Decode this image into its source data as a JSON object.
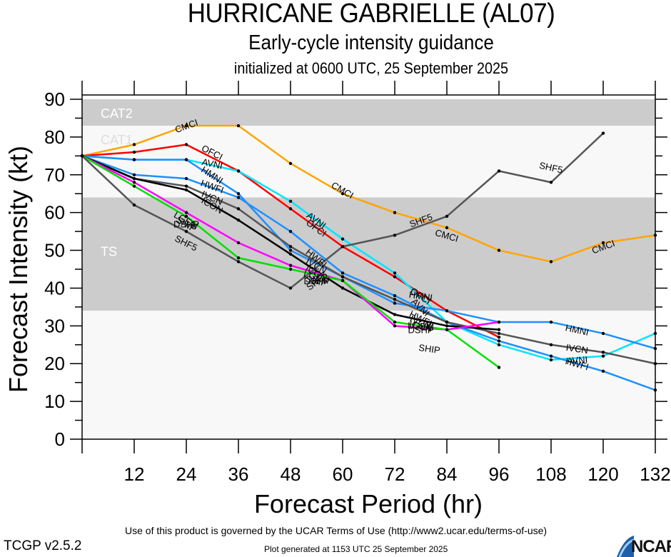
{
  "header": {
    "title": "HURRICANE GABRIELLE (AL07)",
    "subtitle": "Early-cycle intensity guidance",
    "init_line": "initialized at 0600 UTC, 25 September 2025"
  },
  "footer": {
    "terms": "Use of this product is governed by the UCAR Terms of Use (http://www2.ucar.edu/terms-of-use)",
    "version": "TCGP v2.5.2",
    "generated": "Plot generated at 1153 UTC   25 September 2025",
    "logo_text": "NCAR"
  },
  "chart_data": {
    "type": "line",
    "title": "HURRICANE GABRIELLE (AL07)",
    "xlabel": "Forecast Period (hr)",
    "ylabel": "Forecast Intensity (kt)",
    "xlim": [
      0,
      132
    ],
    "ylim": [
      0,
      90
    ],
    "x_ticks": [
      12,
      24,
      36,
      48,
      60,
      72,
      84,
      96,
      108,
      120,
      132
    ],
    "y_ticks": [
      0,
      10,
      20,
      30,
      40,
      50,
      60,
      70,
      80,
      90
    ],
    "bands": [
      {
        "label": "CAT2",
        "from": 83,
        "to": 90,
        "color": "#cccccc"
      },
      {
        "label": "CAT1",
        "from": 64,
        "to": 83,
        "color": "#f8f8f8"
      },
      {
        "label": "TS",
        "from": 34,
        "to": 64,
        "color": "#cccccc"
      },
      {
        "label": "",
        "from": 0,
        "to": 34,
        "color": "#f8f8f8"
      }
    ],
    "series": [
      {
        "name": "CMCI",
        "color": "#ffa500",
        "x": [
          0,
          12,
          24,
          36,
          48,
          60,
          72,
          84,
          96,
          108,
          120,
          132
        ],
        "values": [
          75,
          78,
          83,
          83,
          73,
          65,
          60,
          56,
          50,
          47,
          52,
          54
        ],
        "labels": [
          [
            24,
            83
          ],
          [
            60,
            66
          ],
          [
            84,
            54
          ],
          [
            120,
            51
          ]
        ]
      },
      {
        "name": "OFCI",
        "color": "#ff0000",
        "x": [
          0,
          12,
          24,
          36,
          48,
          60,
          72,
          84,
          96
        ],
        "values": [
          75,
          76,
          78,
          71,
          61,
          51,
          43,
          34,
          27
        ],
        "labels": [
          [
            30,
            76
          ],
          [
            54,
            56
          ],
          [
            78,
            38
          ]
        ]
      },
      {
        "name": "AVNI",
        "color": "#00e5ff",
        "x": [
          0,
          12,
          24,
          36,
          48,
          60,
          72,
          84,
          96,
          108,
          120,
          132
        ],
        "values": [
          75,
          74,
          74,
          71,
          63,
          53,
          44,
          31,
          25,
          21,
          22,
          28
        ],
        "labels": [
          [
            30,
            73
          ],
          [
            54,
            58
          ],
          [
            78,
            35
          ],
          [
            114,
            21
          ]
        ]
      },
      {
        "name": "HMNI",
        "color": "#1e90ff",
        "x": [
          0,
          12,
          24,
          36,
          48,
          60,
          72,
          84,
          96,
          108,
          120,
          132
        ],
        "values": [
          75,
          74,
          74,
          65,
          50,
          43,
          36,
          34,
          31,
          31,
          28,
          24
        ],
        "labels": [
          [
            30,
            70
          ],
          [
            78,
            38
          ],
          [
            114,
            29
          ]
        ]
      },
      {
        "name": "HWFI",
        "color": "#1e90ff",
        "x": [
          0,
          12,
          24,
          36,
          48,
          60,
          72,
          84,
          96,
          108,
          120,
          132
        ],
        "values": [
          75,
          70,
          69,
          64,
          55,
          44,
          38,
          31,
          26,
          22,
          18,
          13
        ],
        "labels": [
          [
            30,
            67
          ],
          [
            54,
            48
          ],
          [
            78,
            32
          ],
          [
            114,
            20
          ]
        ]
      },
      {
        "name": "IVCN",
        "color": "#555555",
        "x": [
          0,
          12,
          24,
          36,
          48,
          60,
          72,
          84,
          96,
          108,
          120,
          132
        ],
        "values": [
          75,
          69,
          67,
          61,
          51,
          43,
          37,
          31,
          28,
          25,
          23,
          20
        ],
        "labels": [
          [
            30,
            64
          ],
          [
            54,
            46
          ],
          [
            78,
            31
          ],
          [
            114,
            24
          ]
        ]
      },
      {
        "name": "ICON",
        "color": "#000000",
        "x": [
          0,
          12,
          24,
          36,
          48,
          60,
          72,
          84,
          96
        ],
        "values": [
          75,
          69,
          66,
          58,
          49,
          40,
          33,
          30,
          29
        ],
        "labels": [
          [
            30,
            62
          ],
          [
            54,
            44
          ],
          [
            78,
            30
          ]
        ]
      },
      {
        "name": "LGEM",
        "color": "#ff00ff",
        "x": [
          0,
          12,
          24,
          36,
          48,
          60,
          72,
          84,
          96
        ],
        "values": [
          75,
          68,
          60,
          52,
          46,
          42,
          30,
          29,
          31
        ],
        "labels": [
          [
            24,
            58
          ],
          [
            54,
            43
          ],
          [
            78,
            30
          ]
        ]
      },
      {
        "name": "SHIP",
        "color": "#00e000",
        "x": [
          0,
          12,
          24,
          36,
          48,
          60,
          72,
          84,
          96
        ],
        "values": [
          75,
          67,
          59,
          48,
          45,
          42,
          31,
          29,
          19
        ],
        "labels": [
          [
            24,
            57
          ],
          [
            54,
            42
          ],
          [
            80,
            24
          ]
        ]
      },
      {
        "name": "DSHP",
        "color": "#00e000",
        "x": [],
        "values": [],
        "labels": [
          [
            24,
            57
          ],
          [
            54,
            42
          ],
          [
            78,
            29
          ]
        ]
      },
      {
        "name": "SHF5",
        "color": "#555555",
        "x": [
          0,
          12,
          24,
          36,
          48,
          60,
          72,
          84,
          96,
          108,
          120
        ],
        "values": [
          75,
          62,
          55,
          47,
          40,
          51,
          54,
          59,
          71,
          68,
          81
        ],
        "labels": [
          [
            24,
            52
          ],
          [
            54,
            42
          ],
          [
            78,
            58
          ],
          [
            108,
            72
          ]
        ]
      }
    ]
  }
}
